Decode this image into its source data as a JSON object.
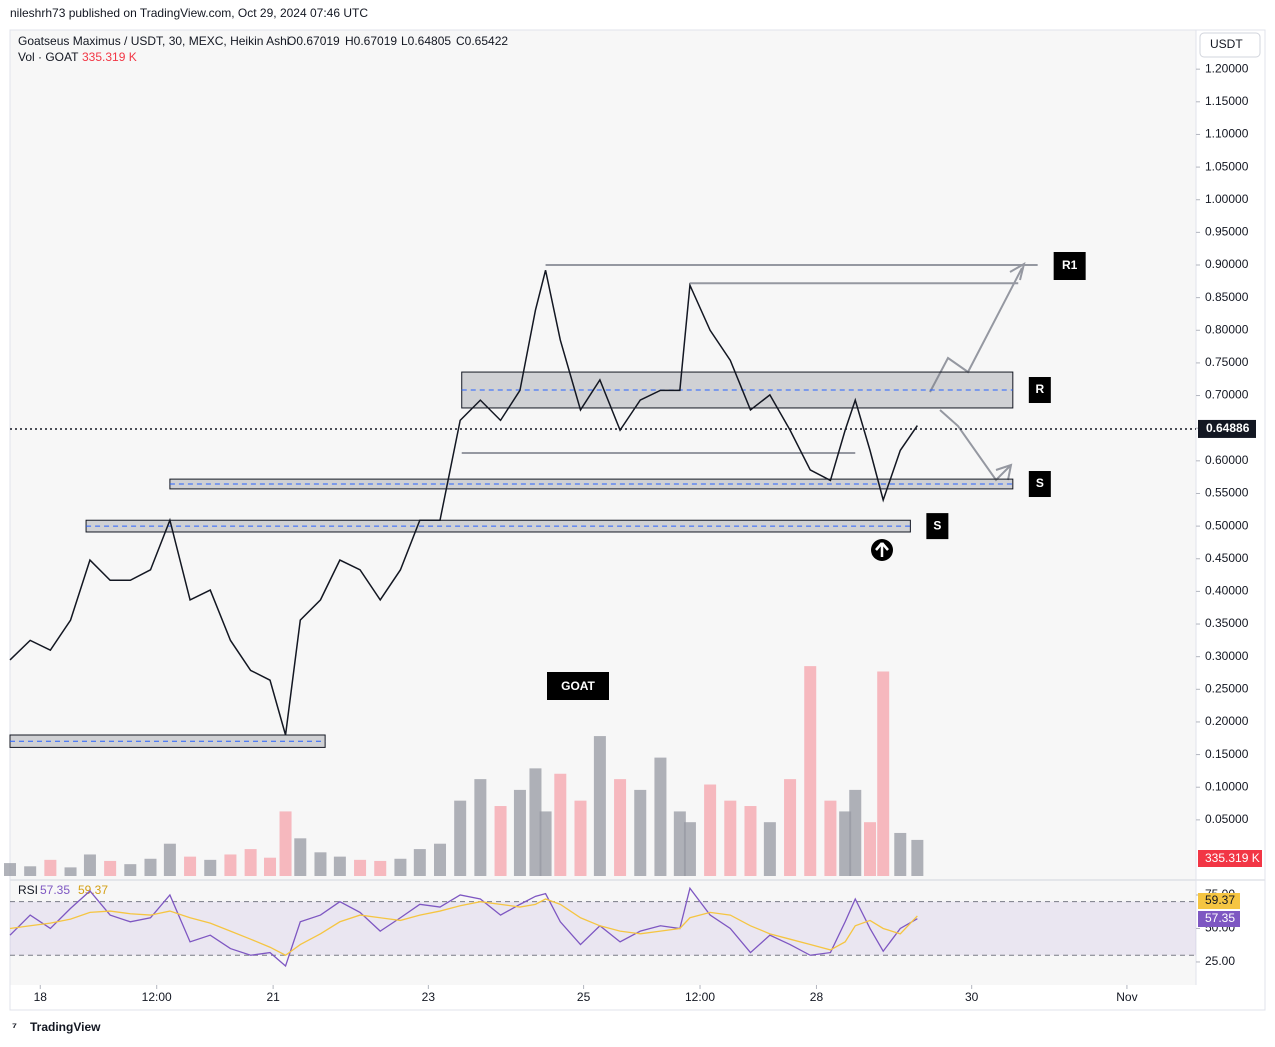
{
  "header": {
    "published": "nileshrh73 published on TradingView.com, Oct 29, 2024 07:46 UTC"
  },
  "footer": {
    "brand": "TradingView"
  },
  "chart_data": [
    {
      "type": "line",
      "title": "Goatseus Maximus / USDT, 30, MEXC, Heikin Ashi",
      "ohlc": [
        "O0.67019",
        "H0.67019",
        "L0.64805",
        "C0.65422"
      ],
      "volume_title": "Vol · GOAT",
      "volume_label": "335.319 K",
      "currency": "USDT",
      "annotation": "GOAT",
      "x": [
        17.61,
        17.87,
        18.13,
        18.39,
        18.64,
        18.9,
        19.16,
        19.42,
        19.67,
        19.93,
        20.19,
        20.45,
        20.71,
        20.96,
        21.16,
        21.35,
        21.61,
        21.86,
        22.12,
        22.38,
        22.64,
        22.89,
        23.15,
        23.41,
        23.67,
        23.93,
        24.18,
        24.38,
        24.51,
        24.7,
        24.96,
        25.21,
        25.47,
        25.73,
        25.99,
        26.24,
        26.37,
        26.63,
        26.89,
        27.15,
        27.4,
        27.66,
        27.92,
        28.18,
        28.37,
        28.5,
        28.69,
        28.86,
        29.08,
        29.3
      ],
      "series": [
        {
          "type": "line",
          "color": "#131722",
          "values": [
            0.295,
            0.325,
            0.31,
            0.356,
            0.448,
            0.417,
            0.417,
            0.433,
            0.509,
            0.387,
            0.402,
            0.325,
            0.279,
            0.264,
            0.18,
            0.356,
            0.387,
            0.448,
            0.433,
            0.387,
            0.433,
            0.509,
            0.509,
            0.662,
            0.693,
            0.662,
            0.708,
            0.831,
            0.892,
            0.785,
            0.678,
            0.724,
            0.647,
            0.693,
            0.708,
            0.708,
            0.869,
            0.8,
            0.754,
            0.678,
            0.701,
            0.647,
            0.586,
            0.57,
            0.647,
            0.693,
            0.616,
            0.54,
            0.616,
            0.654
          ]
        },
        {
          "type": "bar",
          "axis": "y2",
          "color": "#9598a1",
          "down_color": "#f5a3ab",
          "values": [
            120,
            90,
            150,
            80,
            200,
            140,
            110,
            160,
            300,
            180,
            150,
            200,
            250,
            170,
            600,
            350,
            220,
            180,
            150,
            140,
            160,
            250,
            300,
            700,
            900,
            650,
            800,
            1000,
            600,
            950,
            700,
            1300,
            900,
            800,
            1100,
            600,
            500,
            850,
            700,
            650,
            500,
            900,
            1950,
            700,
            600,
            800,
            500,
            1900,
            400,
            335.319
          ]
        }
      ],
      "xlim": [
        17.61,
        32.89
      ],
      "xticks": [
        18,
        {
          "value": 19.5,
          "label": "12:00"
        },
        21,
        23,
        25,
        {
          "value": 26.5,
          "label": "12:00"
        },
        28,
        30,
        {
          "value": 32,
          "label": "Nov"
        }
      ],
      "ylim": [
        -0.036,
        1.26
      ],
      "yticks": [
        {
          "value": 1.2,
          "label": "1.20000"
        },
        {
          "value": 1.15,
          "label": "1.15000"
        },
        {
          "value": 1.1,
          "label": "1.10000"
        },
        {
          "value": 1.05,
          "label": "1.05000"
        },
        {
          "value": 1.0,
          "label": "1.00000"
        },
        {
          "value": 0.95,
          "label": "0.95000"
        },
        {
          "value": 0.9,
          "label": "0.90000"
        },
        {
          "value": 0.85,
          "label": "0.85000"
        },
        {
          "value": 0.8,
          "label": "0.80000"
        },
        {
          "value": 0.75,
          "label": "0.75000"
        },
        {
          "value": 0.7,
          "label": "0.70000"
        },
        {
          "value": 0.65,
          "label": "0.65000"
        },
        {
          "value": 0.6,
          "label": "0.60000"
        },
        {
          "value": 0.55,
          "label": "0.55000"
        },
        {
          "value": 0.5,
          "label": "0.50000"
        },
        {
          "value": 0.45,
          "label": "0.45000"
        },
        {
          "value": 0.4,
          "label": "0.40000"
        },
        {
          "value": 0.35,
          "label": "0.35000"
        },
        {
          "value": 0.3,
          "label": "0.30000"
        },
        {
          "value": 0.25,
          "label": "0.25000"
        },
        {
          "value": 0.2,
          "label": "0.20000"
        },
        {
          "value": 0.15,
          "label": "0.15000"
        },
        {
          "value": 0.1,
          "label": "0.10000"
        },
        {
          "value": 0.05,
          "label": "0.05000"
        }
      ],
      "y2lim": [
        0,
        7860
      ],
      "last_price": 0.64886,
      "zones": [
        {
          "label": "R",
          "low": 0.681,
          "high": 0.736,
          "start": 23.43,
          "end": 30.53
        },
        {
          "label": "S",
          "low": 0.557,
          "high": 0.572,
          "start": 19.67,
          "end": 30.53
        },
        {
          "label": "S",
          "low": 0.491,
          "high": 0.509,
          "start": 18.59,
          "end": 29.21
        },
        {
          "low": 0.161,
          "high": 0.18,
          "start": 17.61,
          "end": 21.67
        }
      ],
      "levels": [
        {
          "label": "R1",
          "price": 0.9,
          "start": 24.51,
          "end": 30.85
        },
        {
          "price": 0.872,
          "start": 26.37,
          "end": 30.6
        },
        {
          "price": 0.612,
          "start": 23.43,
          "end": 28.5
        }
      ]
    },
    {
      "type": "line",
      "title": "RSI",
      "x": [
        17.61,
        17.87,
        18.13,
        18.39,
        18.64,
        18.9,
        19.16,
        19.42,
        19.67,
        19.93,
        20.19,
        20.45,
        20.71,
        20.96,
        21.16,
        21.35,
        21.61,
        21.86,
        22.12,
        22.38,
        22.64,
        22.89,
        23.15,
        23.41,
        23.67,
        23.93,
        24.18,
        24.38,
        24.51,
        24.7,
        24.96,
        25.21,
        25.47,
        25.73,
        25.99,
        26.24,
        26.37,
        26.63,
        26.89,
        27.15,
        27.4,
        27.66,
        27.92,
        28.18,
        28.37,
        28.5,
        28.69,
        28.86,
        29.08,
        29.3
      ],
      "series": [
        {
          "color": "#7e57c2",
          "values": [
            45,
            60,
            50,
            65,
            78,
            60,
            55,
            58,
            75,
            40,
            45,
            35,
            30,
            32,
            22,
            55,
            60,
            70,
            62,
            48,
            58,
            68,
            66,
            75,
            72,
            60,
            68,
            74,
            76,
            55,
            38,
            52,
            40,
            48,
            52,
            50,
            80,
            60,
            50,
            32,
            45,
            38,
            30,
            32,
            55,
            72,
            50,
            33,
            50,
            57.35
          ]
        },
        {
          "color": "#f5c542",
          "values": [
            50,
            52,
            54,
            57,
            62,
            63,
            61,
            60,
            63,
            58,
            54,
            48,
            42,
            36,
            30,
            38,
            46,
            55,
            60,
            58,
            56,
            60,
            63,
            67,
            70,
            68,
            66,
            68,
            72,
            68,
            58,
            52,
            48,
            46,
            48,
            50,
            58,
            62,
            60,
            52,
            46,
            42,
            38,
            34,
            40,
            52,
            56,
            50,
            46,
            59.37
          ]
        }
      ],
      "xlim": [
        17.61,
        32.89
      ],
      "ylim": [
        7.8,
        83.2
      ],
      "yticks": [
        {
          "value": 75,
          "label": "75.00"
        },
        {
          "value": 50,
          "label": "50.00"
        },
        {
          "value": 25,
          "label": "25.00"
        }
      ],
      "band": [
        30,
        70
      ]
    }
  ]
}
